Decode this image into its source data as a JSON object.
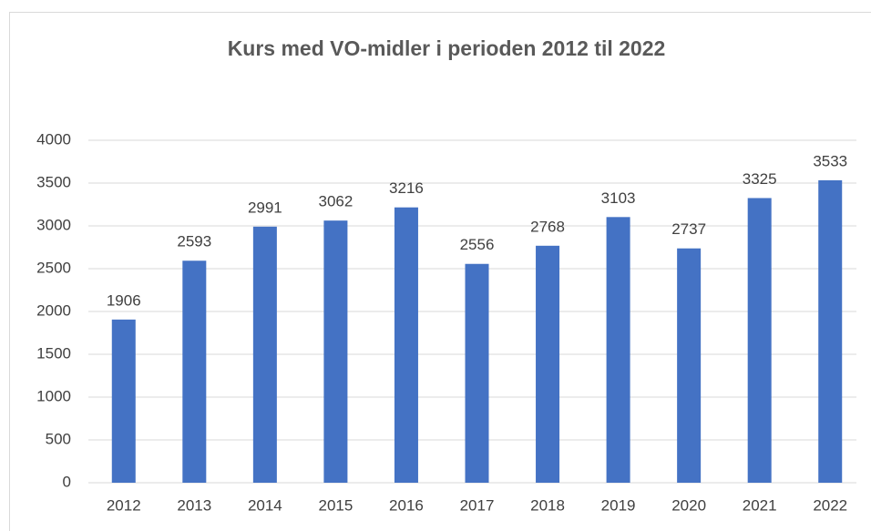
{
  "chart_data": {
    "type": "bar",
    "title": "Kurs med VO-midler i perioden 2012 til 2022",
    "categories": [
      "2012",
      "2013",
      "2014",
      "2015",
      "2016",
      "2017",
      "2018",
      "2019",
      "2020",
      "2021",
      "2022"
    ],
    "values": [
      1906,
      2593,
      2991,
      3062,
      3216,
      2556,
      2768,
      3103,
      2737,
      3325,
      3533
    ],
    "color": "#4472c4",
    "ylim": [
      0,
      4000
    ],
    "yticks": [
      0,
      500,
      1000,
      1500,
      2000,
      2500,
      3000,
      3500,
      4000
    ],
    "grid": true
  }
}
